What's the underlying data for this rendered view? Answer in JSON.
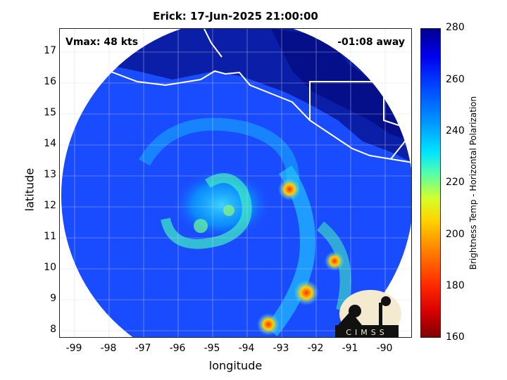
{
  "title": "Erick: 17-Jun-2025 21:00:00",
  "vmax_label": "Vmax: 48 kts",
  "time_away": "-01:08 away",
  "axes": {
    "xlabel": "longitude",
    "ylabel": "latitude",
    "xticks": [
      "-99",
      "-98",
      "-97",
      "-96",
      "-95",
      "-94",
      "-93",
      "-92",
      "-91",
      "-90"
    ],
    "yticks": [
      "17",
      "16",
      "15",
      "14",
      "13",
      "12",
      "11",
      "10",
      "9",
      "8"
    ]
  },
  "colorbar": {
    "label": "Brightness Temp - Horizontal Polarization",
    "ticks": [
      "280",
      "260",
      "240",
      "220",
      "200",
      "180",
      "160"
    ]
  },
  "logo_text": "CIMSS",
  "colors": {
    "background_cold": "#0a20c8",
    "swath_base": "#1a4cff",
    "land_dark": "#050f8a",
    "coastline": "#ffffff",
    "warm_rain": "#ff2a00"
  }
}
